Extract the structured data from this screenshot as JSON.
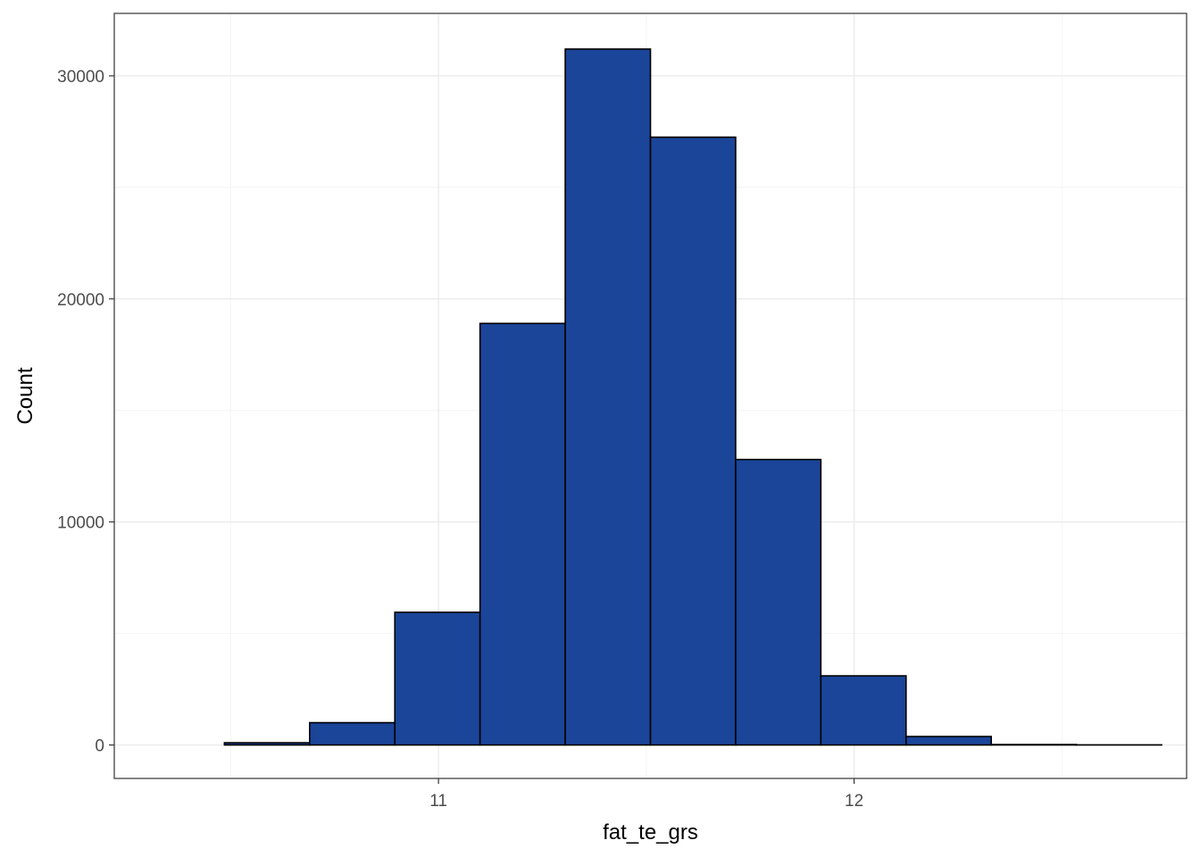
{
  "chart_data": {
    "type": "bar",
    "subtype": "histogram",
    "title": "",
    "xlabel": "fat_te_grs",
    "ylabel": "Count",
    "bin_width": 0.205,
    "bins": [
      {
        "x_start": 10.28,
        "x_end": 10.485,
        "count": 0
      },
      {
        "x_start": 10.485,
        "x_end": 10.69,
        "count": 100
      },
      {
        "x_start": 10.69,
        "x_end": 10.895,
        "count": 1000
      },
      {
        "x_start": 10.895,
        "x_end": 11.1,
        "count": 5950
      },
      {
        "x_start": 11.1,
        "x_end": 11.305,
        "count": 18900
      },
      {
        "x_start": 11.305,
        "x_end": 11.51,
        "count": 31200
      },
      {
        "x_start": 11.51,
        "x_end": 11.715,
        "count": 27250
      },
      {
        "x_start": 11.715,
        "x_end": 11.92,
        "count": 12800
      },
      {
        "x_start": 11.92,
        "x_end": 12.125,
        "count": 3100
      },
      {
        "x_start": 12.125,
        "x_end": 12.33,
        "count": 380
      },
      {
        "x_start": 12.33,
        "x_end": 12.535,
        "count": 20
      },
      {
        "x_start": 12.535,
        "x_end": 12.74,
        "count": 5
      }
    ],
    "xlim": [
      10.22,
      12.8
    ],
    "ylim": [
      -1500,
      32800
    ],
    "x_ticks": [
      11,
      12
    ],
    "x_tick_labels": [
      "11",
      "12"
    ],
    "x_minor_ticks": [
      10.5,
      11.5,
      12.5
    ],
    "y_ticks": [
      0,
      10000,
      20000,
      30000
    ],
    "y_tick_labels": [
      "0",
      "10000",
      "20000",
      "30000"
    ],
    "y_minor_ticks": [
      5000,
      15000,
      25000
    ],
    "grid": true,
    "legend": "none",
    "colors": {
      "bar_fill": "#1a4599",
      "bar_stroke": "#000000",
      "grid_major": "#ebebeb",
      "grid_minor": "#f4f4f4",
      "panel_border": "#333333",
      "tick_text": "#4d4d4d"
    }
  }
}
